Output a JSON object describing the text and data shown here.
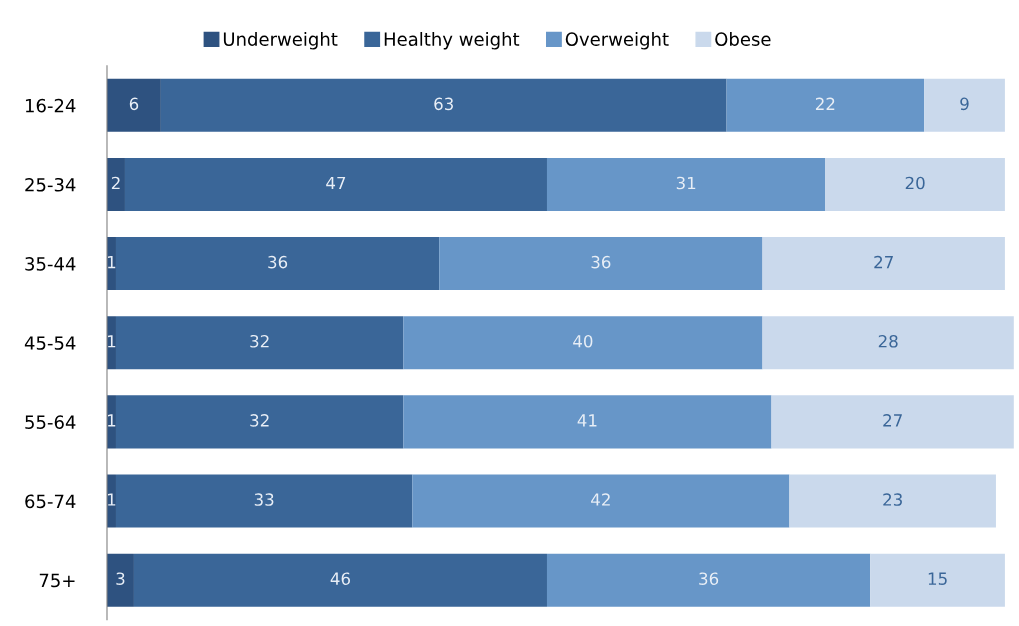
{
  "chart_data": {
    "type": "bar",
    "orientation": "horizontal",
    "stacked": true,
    "categories": [
      "16-24",
      "25-34",
      "35-44",
      "45-54",
      "55-64",
      "65-74",
      "75+"
    ],
    "series": [
      {
        "name": "Underweight",
        "color": "#2e5280",
        "values": [
          6,
          2,
          1,
          1,
          1,
          1,
          3
        ]
      },
      {
        "name": "Healthy weight",
        "color": "#3a6698",
        "values": [
          63,
          47,
          36,
          32,
          32,
          33,
          46
        ]
      },
      {
        "name": "Overweight",
        "color": "#6796c8",
        "values": [
          22,
          31,
          36,
          40,
          41,
          42,
          36
        ]
      },
      {
        "name": "Obese",
        "color": "#cad9ec",
        "values": [
          9,
          20,
          27,
          28,
          27,
          23,
          15
        ]
      }
    ],
    "xlim": [
      0,
      101
    ],
    "tick_labels": "y",
    "data_labels": true,
    "legend": "top",
    "grid": false
  }
}
